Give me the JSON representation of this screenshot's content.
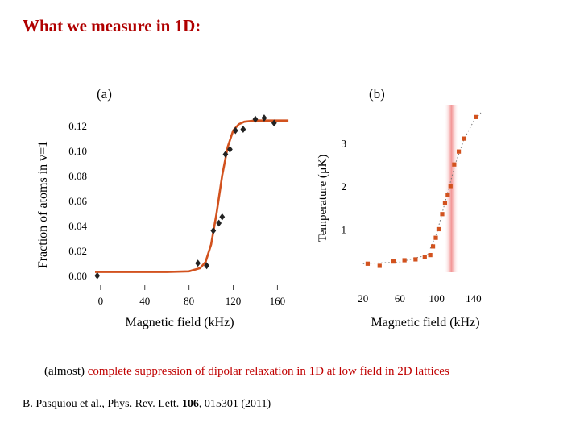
{
  "slide": {
    "title": "What we measure in 1D:",
    "caption_prefix": "(almost) ",
    "caption_highlight": "complete suppression of dipolar relaxation in 1D at low field in 2D lattices",
    "citation_pre": "B. Pasquiou et al., Phys. Rev. Lett. ",
    "citation_volume": "106",
    "citation_post": ", 015301 (2011)"
  },
  "chart_data": [
    {
      "type": "scatter",
      "panel_label": "(a)",
      "xlabel": "Magnetic field (kHz)",
      "ylabel": "Fraction of atoms in v=1",
      "xlim": [
        -5,
        175
      ],
      "ylim": [
        -0.005,
        0.127
      ],
      "x_ticks": [
        0,
        40,
        80,
        120,
        160
      ],
      "y_ticks": [
        0.0,
        0.02,
        0.04,
        0.06,
        0.08,
        0.1,
        0.12
      ],
      "y_tick_labels": [
        "0.00",
        "0.02",
        "0.04",
        "0.06",
        "0.08",
        "0.10",
        "0.12"
      ],
      "points": {
        "x": [
          -3,
          88,
          96,
          102,
          107,
          110,
          113,
          117,
          122,
          129,
          140,
          148,
          157
        ],
        "y": [
          0.0,
          0.01,
          0.008,
          0.036,
          0.042,
          0.047,
          0.097,
          0.101,
          0.116,
          0.117,
          0.125,
          0.126,
          0.122
        ]
      },
      "fit_curve": {
        "x": [
          -5,
          20,
          40,
          60,
          80,
          90,
          95,
          100,
          105,
          110,
          115,
          120,
          125,
          130,
          140,
          160,
          170
        ],
        "y": [
          0.003,
          0.003,
          0.003,
          0.003,
          0.0035,
          0.006,
          0.011,
          0.025,
          0.05,
          0.08,
          0.103,
          0.116,
          0.121,
          0.123,
          0.124,
          0.124,
          0.124
        ]
      },
      "marker_color": "#222222",
      "fit_color": "#d2521e",
      "grid": false
    },
    {
      "type": "scatter",
      "panel_label": "(b)",
      "xlabel": "Magnetic field (kHz)",
      "ylabel": "Temperature (µK)",
      "xlim": [
        15,
        155
      ],
      "ylim": [
        0,
        3.7
      ],
      "x_ticks": [
        20,
        60,
        100,
        140
      ],
      "y_ticks": [
        1,
        2,
        3
      ],
      "points": {
        "x": [
          25,
          38,
          53,
          65,
          77,
          87,
          93,
          96,
          99,
          102,
          106,
          109,
          112,
          115,
          119,
          124,
          130,
          143
        ],
        "y": [
          0.2,
          0.15,
          0.25,
          0.28,
          0.3,
          0.35,
          0.4,
          0.6,
          0.8,
          1.0,
          1.35,
          1.6,
          1.8,
          2.0,
          2.5,
          2.8,
          3.1,
          3.6
        ]
      },
      "trend": {
        "x": [
          20,
          60,
          90,
          100,
          105,
          110,
          115,
          120,
          125,
          130,
          140,
          148
        ],
        "y": [
          0.2,
          0.24,
          0.4,
          0.9,
          1.3,
          1.7,
          2.1,
          2.5,
          2.8,
          3.1,
          3.5,
          3.7
        ]
      },
      "highlight_band": {
        "x_range": [
          108,
          124
        ],
        "color": "#f3a8a8"
      },
      "marker_color": "#d2521e",
      "grid": false
    }
  ]
}
